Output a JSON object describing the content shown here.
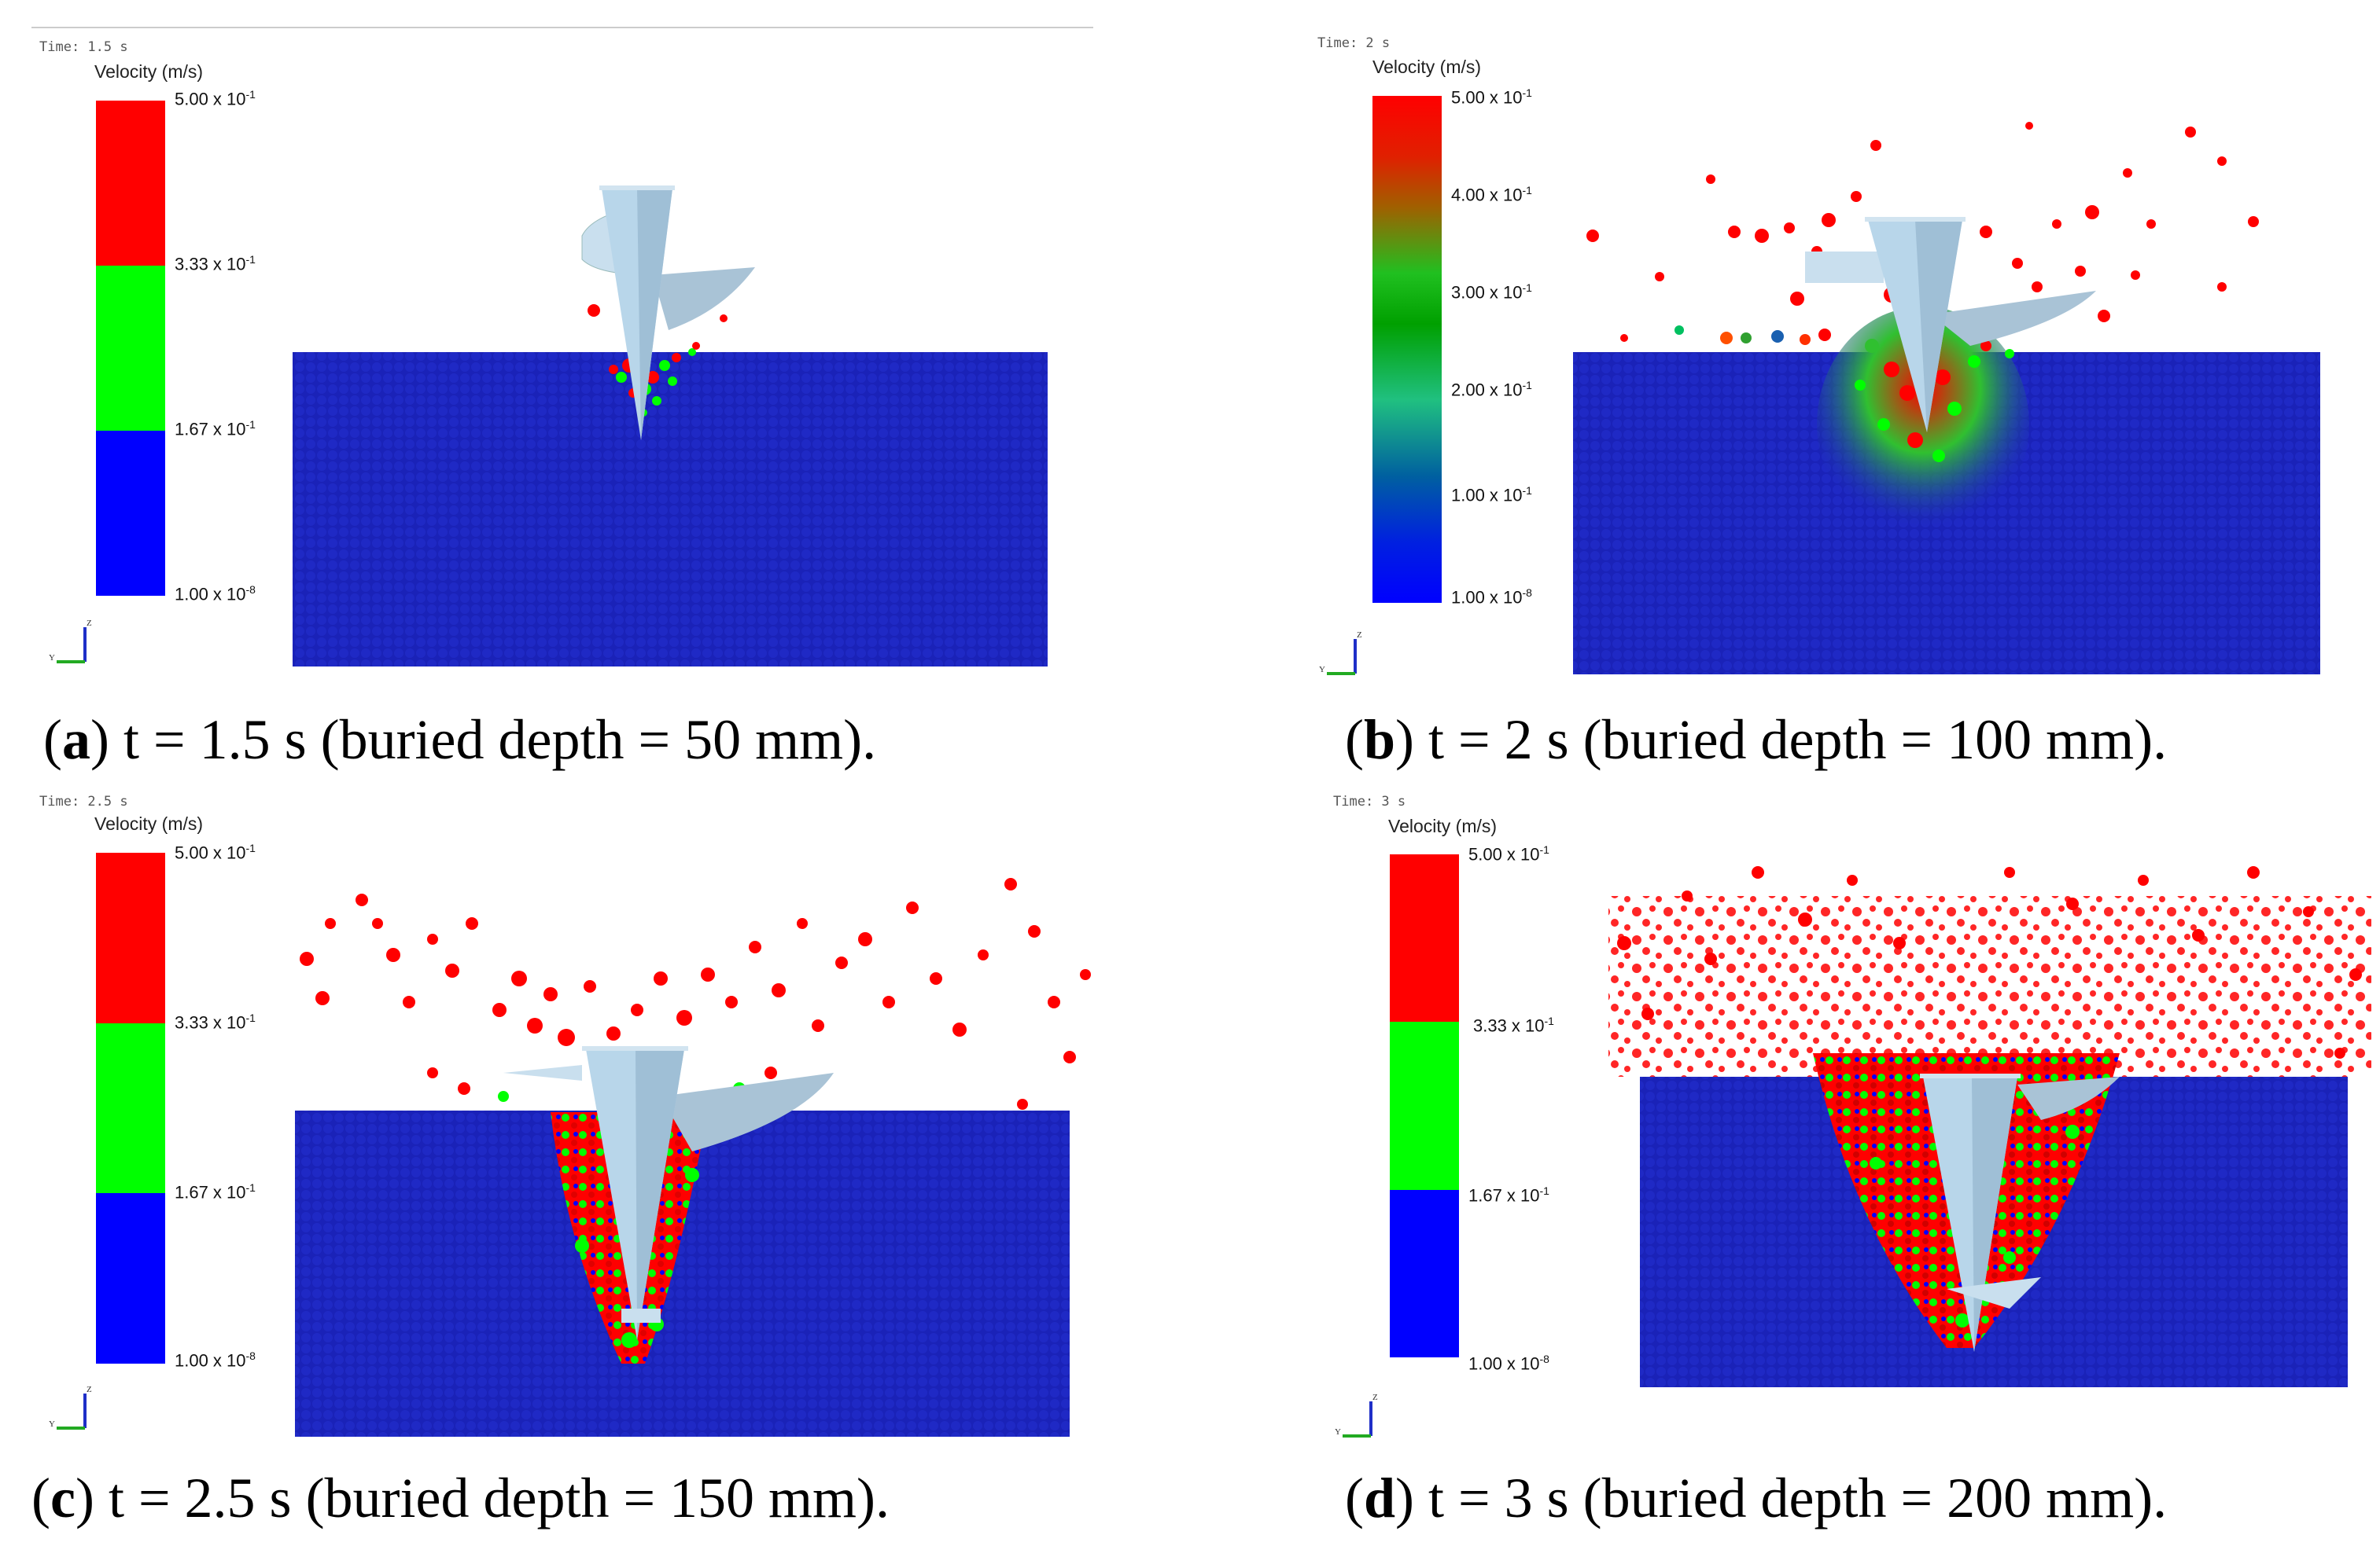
{
  "colors": {
    "red": "#ff0000",
    "green": "#00ff00",
    "blue": "#0000ff",
    "soil": "#1a22b8",
    "tool": "#b8d6ea"
  },
  "colorbar": {
    "title": "Velocity (m/s)",
    "ticks_discrete": [
      {
        "mantissa": "5.00 x 10",
        "exp": "-1"
      },
      {
        "mantissa": "3.33 x 10",
        "exp": "-1"
      },
      {
        "mantissa": "1.67 x 10",
        "exp": "-1"
      },
      {
        "mantissa": "1.00 x 10",
        "exp": "-8"
      }
    ],
    "ticks_continuous": [
      {
        "mantissa": "5.00 x 10",
        "exp": "-1"
      },
      {
        "mantissa": "4.00 x 10",
        "exp": "-1"
      },
      {
        "mantissa": "3.00 x 10",
        "exp": "-1"
      },
      {
        "mantissa": "2.00 x 10",
        "exp": "-1"
      },
      {
        "mantissa": "1.00 x 10",
        "exp": "-1"
      },
      {
        "mantissa": "1.00 x 10",
        "exp": "-8"
      }
    ]
  },
  "axis_labels": {
    "z": "Z",
    "y": "Y"
  },
  "panels": [
    {
      "time_label": "Time: 1.5 s",
      "letter": "a",
      "caption": "t = 1.5 s (buried depth = 50 mm).",
      "time_s": 1.5,
      "buried_depth_mm": 50
    },
    {
      "time_label": "Time: 2 s",
      "letter": "b",
      "caption": "t = 2 s (buried depth = 100 mm).",
      "time_s": 2,
      "buried_depth_mm": 100
    },
    {
      "time_label": "Time: 2.5 s",
      "letter": "c",
      "caption": "t = 2.5 s (buried depth = 150 mm).",
      "time_s": 2.5,
      "buried_depth_mm": 150
    },
    {
      "time_label": "Time: 3 s",
      "letter": "d",
      "caption": "t = 3 s (buried depth = 200 mm).",
      "time_s": 3,
      "buried_depth_mm": 200
    }
  ]
}
